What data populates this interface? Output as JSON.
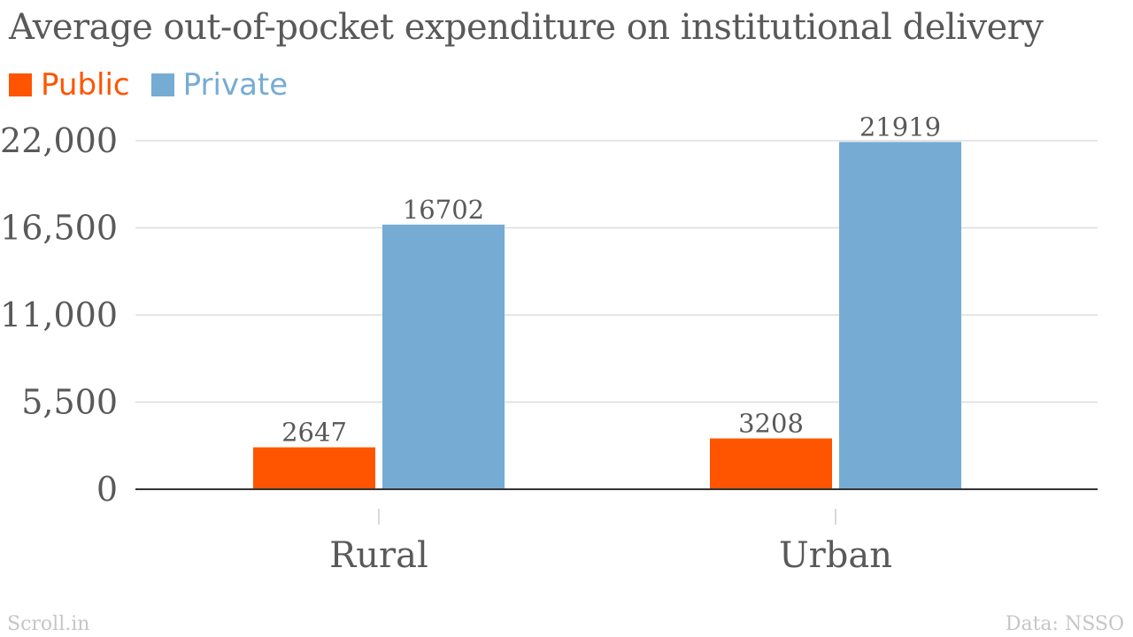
{
  "chart_data": {
    "type": "bar",
    "title": "Average out-of-pocket expenditure on institutional delivery",
    "categories": [
      "Rural",
      "Urban"
    ],
    "series": [
      {
        "name": "Public",
        "color": "#ff5500",
        "values": [
          2647,
          3208
        ]
      },
      {
        "name": "Private",
        "color": "#76acd3",
        "values": [
          16702,
          21919
        ]
      }
    ],
    "yticks": [
      "0",
      "5,500",
      "11,000",
      "16,500",
      "22,000"
    ],
    "ytick_values": [
      0,
      5500,
      11000,
      16500,
      22000
    ],
    "ylim": [
      0,
      22000
    ],
    "grid": true,
    "legend": "top-left",
    "xlabel": "",
    "ylabel": ""
  },
  "footer": {
    "source": "Scroll.in",
    "credit": "Data: NSSO"
  },
  "colors": {
    "text": "#595959",
    "grid": "#dddddd",
    "axis": "#333333"
  }
}
